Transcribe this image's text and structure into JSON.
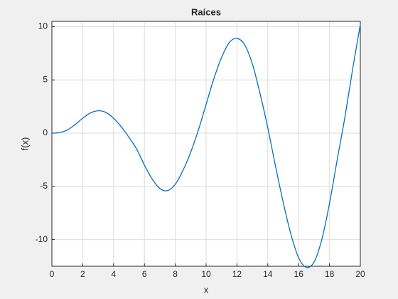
{
  "chart_data": {
    "type": "line",
    "title": "Raíces",
    "x_label": "x",
    "y_label": "f(x)",
    "x": [
      0,
      0.5,
      1,
      1.5,
      2,
      2.5,
      3,
      3.5,
      4,
      4.5,
      5,
      5.5,
      6,
      6.5,
      7,
      7.5,
      8,
      8.5,
      9,
      9.5,
      10,
      10.5,
      11,
      11.5,
      12,
      12.5,
      13,
      13.5,
      14,
      14.5,
      15,
      15.5,
      16,
      16.5,
      17,
      17.5,
      18,
      18.5,
      19,
      19.5,
      20
    ],
    "series": [
      {
        "color": "#0072bd",
        "values": [
          0,
          0.05,
          0.3,
          0.8,
          1.4,
          1.9,
          2.1,
          1.95,
          1.4,
          0.6,
          -0.4,
          -1.5,
          -3.0,
          -4.3,
          -5.2,
          -5.4,
          -4.8,
          -3.5,
          -1.8,
          0.3,
          2.7,
          5.1,
          7.1,
          8.5,
          8.9,
          8.3,
          6.5,
          3.7,
          0.5,
          -3.1,
          -6.5,
          -9.5,
          -11.7,
          -12.6,
          -12.1,
          -10.0,
          -6.6,
          -2.5,
          1.5,
          6.0,
          10.2
        ]
      }
    ],
    "xlim": [
      0,
      20
    ],
    "xticks": [
      0,
      2,
      4,
      6,
      8,
      10,
      12,
      14,
      16,
      18,
      20
    ],
    "ylim": [
      -12.5,
      10.5
    ],
    "yticks": [
      -10,
      -5,
      0,
      5,
      10
    ],
    "grid": true
  }
}
